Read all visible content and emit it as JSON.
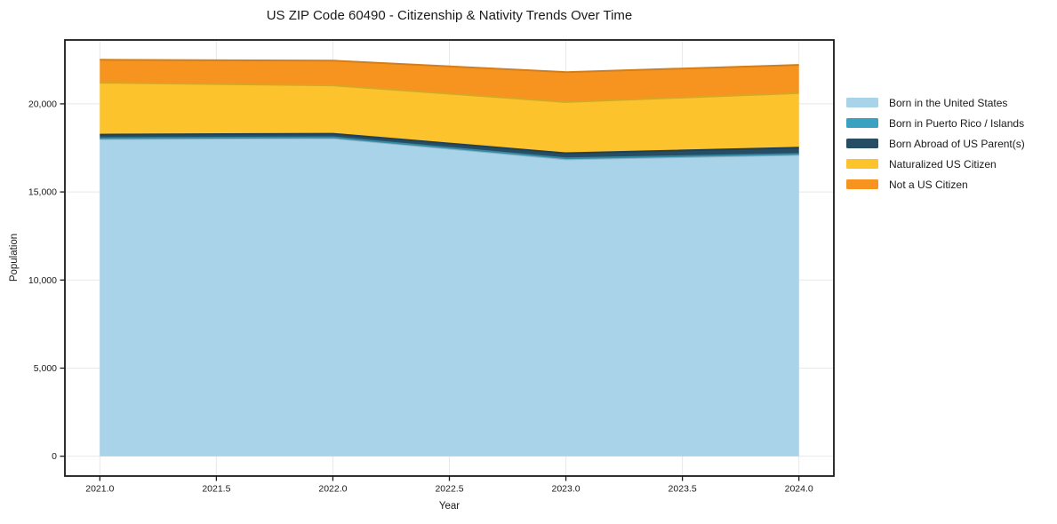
{
  "chart_data": {
    "type": "area",
    "stacked": true,
    "title": "US ZIP Code 60490 - Citizenship & Nativity Trends Over Time",
    "xlabel": "Year",
    "ylabel": "Population",
    "x": [
      2021,
      2022,
      2023,
      2024
    ],
    "series": [
      {
        "name": "Born in the United States",
        "color": "#a8d3e8",
        "values": [
          18000,
          18050,
          16850,
          17100
        ]
      },
      {
        "name": "Born in Puerto Rico / Islands",
        "color": "#3ba1c1",
        "values": [
          50,
          50,
          60,
          60
        ]
      },
      {
        "name": "Born Abroad of US Parent(s)",
        "color": "#264d63",
        "values": [
          200,
          200,
          290,
          350
        ]
      },
      {
        "name": "Naturalized US Citizen",
        "color": "#fcc32d",
        "values": [
          2950,
          2750,
          2900,
          3100
        ]
      },
      {
        "name": "Not a US Citizen",
        "color": "#f7941f",
        "values": [
          1300,
          1400,
          1700,
          1600
        ]
      }
    ],
    "totals": [
      22500,
      22450,
      21800,
      22210
    ],
    "xlim": [
      2020.85,
      2024.15
    ],
    "ylim": [
      -1125,
      23625
    ],
    "xticks": [
      2021.0,
      2021.5,
      2022.0,
      2022.5,
      2023.0,
      2023.5,
      2024.0
    ],
    "xtick_labels": [
      "2021.0",
      "2021.5",
      "2022.0",
      "2022.5",
      "2023.0",
      "2023.5",
      "2024.0"
    ],
    "yticks": [
      0,
      5000,
      10000,
      15000,
      20000
    ],
    "ytick_labels": [
      "0",
      "5,000",
      "10,000",
      "15,000",
      "20,000"
    ],
    "grid": true,
    "legend_position": "right",
    "colors": {
      "grid": "#e8e8e8",
      "spine": "#1a1a1a",
      "text": "#1a1a1a"
    }
  }
}
